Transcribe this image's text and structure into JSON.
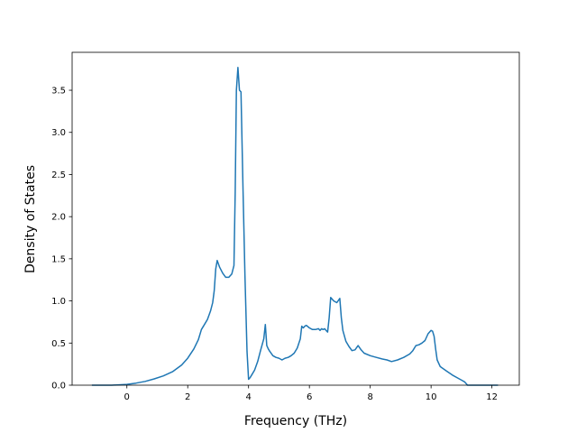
{
  "chart_data": {
    "type": "line",
    "title": "",
    "xlabel": "Frequency (THz)",
    "ylabel": "Density of States",
    "xlim": [
      -1.8,
      12.9
    ],
    "ylim": [
      0.0,
      3.95
    ],
    "x_ticks": [
      0,
      2,
      4,
      6,
      8,
      10,
      12
    ],
    "x_tick_labels": [
      "0",
      "2",
      "4",
      "6",
      "8",
      "10",
      "12"
    ],
    "y_ticks": [
      0.0,
      0.5,
      1.0,
      1.5,
      2.0,
      2.5,
      3.0,
      3.5
    ],
    "y_tick_labels": [
      "0.0",
      "0.5",
      "1.0",
      "1.5",
      "2.0",
      "2.5",
      "3.0",
      "3.5"
    ],
    "grid": false,
    "legend": "none",
    "line_color": "#1f77b4",
    "series": [
      {
        "x": [
          -1.15,
          -0.5,
          0.0,
          0.3,
          0.6,
          0.9,
          1.2,
          1.5,
          1.8,
          2.0,
          2.2,
          2.35,
          2.45,
          2.55,
          2.65,
          2.75,
          2.82,
          2.87,
          2.92,
          2.97,
          3.05,
          3.15,
          3.25,
          3.35,
          3.45,
          3.52,
          3.56,
          3.6,
          3.65,
          3.7,
          3.75,
          3.82,
          3.88,
          3.95,
          4.0,
          4.05,
          4.1,
          4.2,
          4.3,
          4.4,
          4.5,
          4.55,
          4.6,
          4.65,
          4.7,
          4.8,
          4.9,
          5.0,
          5.1,
          5.2,
          5.3,
          5.4,
          5.5,
          5.6,
          5.7,
          5.75,
          5.8,
          5.85,
          5.9,
          6.0,
          6.1,
          6.2,
          6.3,
          6.35,
          6.4,
          6.45,
          6.5,
          6.55,
          6.6,
          6.65,
          6.7,
          6.8,
          6.9,
          7.0,
          7.05,
          7.1,
          7.2,
          7.3,
          7.4,
          7.5,
          7.6,
          7.7,
          7.8,
          8.0,
          8.2,
          8.4,
          8.55,
          8.7,
          8.9,
          9.1,
          9.3,
          9.4,
          9.5,
          9.6,
          9.7,
          9.8,
          9.9,
          10.0,
          10.05,
          10.1,
          10.15,
          10.2,
          10.3,
          10.5,
          10.7,
          10.9,
          11.0,
          11.1,
          11.2,
          11.5,
          12.2
        ],
        "y": [
          0.0,
          0.0,
          0.01,
          0.025,
          0.045,
          0.075,
          0.11,
          0.16,
          0.24,
          0.32,
          0.43,
          0.54,
          0.66,
          0.72,
          0.78,
          0.88,
          0.98,
          1.12,
          1.38,
          1.48,
          1.4,
          1.33,
          1.28,
          1.28,
          1.32,
          1.42,
          2.3,
          3.5,
          3.77,
          3.5,
          3.48,
          2.3,
          1.3,
          0.4,
          0.07,
          0.09,
          0.12,
          0.18,
          0.28,
          0.42,
          0.55,
          0.72,
          0.47,
          0.43,
          0.4,
          0.35,
          0.33,
          0.32,
          0.3,
          0.32,
          0.33,
          0.35,
          0.38,
          0.44,
          0.55,
          0.7,
          0.68,
          0.7,
          0.71,
          0.68,
          0.66,
          0.66,
          0.67,
          0.65,
          0.67,
          0.66,
          0.67,
          0.65,
          0.63,
          0.8,
          1.04,
          1.0,
          0.98,
          1.03,
          0.8,
          0.65,
          0.52,
          0.46,
          0.41,
          0.42,
          0.47,
          0.42,
          0.38,
          0.35,
          0.33,
          0.31,
          0.3,
          0.28,
          0.3,
          0.33,
          0.37,
          0.41,
          0.47,
          0.48,
          0.5,
          0.53,
          0.61,
          0.65,
          0.64,
          0.58,
          0.43,
          0.3,
          0.22,
          0.17,
          0.12,
          0.08,
          0.06,
          0.04,
          0.0,
          0.0,
          0.0
        ]
      }
    ]
  }
}
